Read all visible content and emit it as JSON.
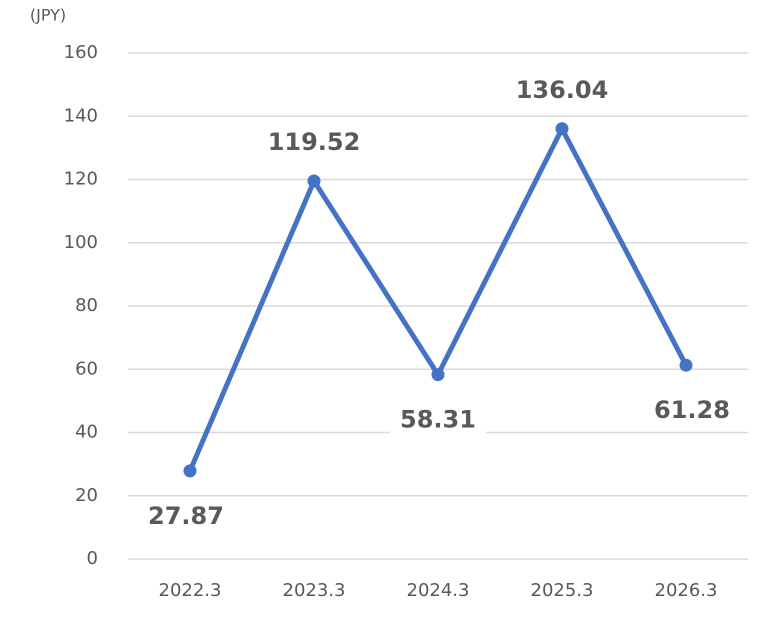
{
  "chart_data": {
    "type": "line",
    "y_label": "(JPY)",
    "categories": [
      "2022.3",
      "2023.3",
      "2024.3",
      "2025.3",
      "2026.3"
    ],
    "values": [
      27.87,
      119.52,
      58.31,
      136.04,
      61.28
    ],
    "color": "#4472c4",
    "ylim": [
      0,
      160
    ],
    "yticks": [
      0,
      20,
      40,
      60,
      80,
      100,
      120,
      140,
      160
    ],
    "grid": true
  }
}
